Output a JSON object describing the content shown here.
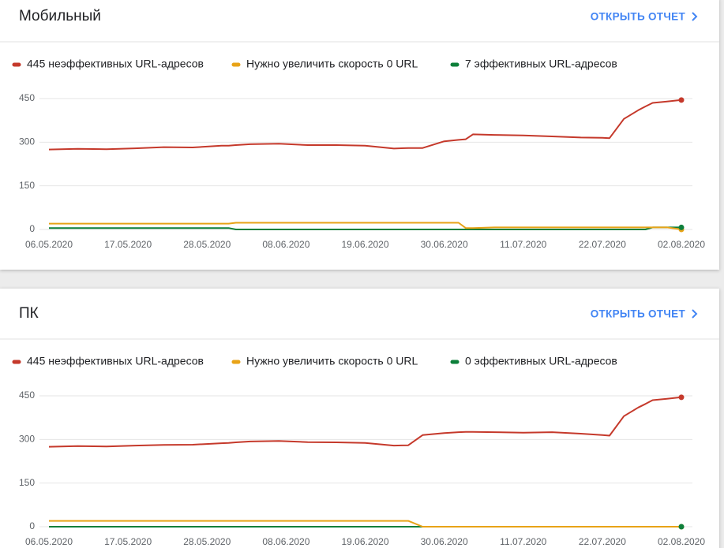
{
  "chart_data": [
    {
      "type": "line",
      "title": "Мобильный",
      "link": "ОТКРЫТЬ ОТЧЕТ",
      "x": [
        "06.05.2020",
        "10.05.2020",
        "14.05.2020",
        "18.05.2020",
        "22.05.2020",
        "26.05.2020",
        "30.05.2020",
        "31.05.2020",
        "01.06.2020",
        "03.06.2020",
        "07.06.2020",
        "11.06.2020",
        "15.06.2020",
        "19.06.2020",
        "23.06.2020",
        "25.06.2020",
        "27.06.2020",
        "30.06.2020",
        "02.07.2020",
        "03.07.2020",
        "04.07.2020",
        "07.07.2020",
        "11.07.2020",
        "15.07.2020",
        "19.07.2020",
        "22.07.2020",
        "23.07.2020",
        "25.07.2020",
        "27.07.2020",
        "28.07.2020",
        "29.07.2020",
        "31.07.2020",
        "02.08.2020"
      ],
      "xlim": [
        "06.05.2020",
        "02.08.2020"
      ],
      "xticks": [
        "06.05.2020",
        "17.05.2020",
        "28.05.2020",
        "08.06.2020",
        "19.06.2020",
        "30.06.2020",
        "11.07.2020",
        "22.07.2020",
        "02.08.2020"
      ],
      "ylim": [
        0,
        450
      ],
      "yticks": [
        0,
        150,
        300,
        450
      ],
      "grid": true,
      "series": [
        {
          "name": "445 неэффективных URL-адресов",
          "color": "#c5392b",
          "values": [
            275,
            277,
            276,
            279,
            283,
            282,
            288,
            288,
            290,
            293,
            295,
            290,
            290,
            288,
            278,
            280,
            280,
            303,
            308,
            310,
            327,
            325,
            323,
            320,
            316,
            315,
            314,
            380,
            410,
            423,
            435,
            440,
            445
          ]
        },
        {
          "name": "Нужно увеличить скорость 0 URL",
          "color": "#e8a317",
          "values": [
            20,
            20,
            20,
            20,
            20,
            20,
            20,
            20,
            23,
            23,
            23,
            23,
            23,
            23,
            23,
            23,
            23,
            23,
            23,
            5,
            5,
            7,
            7,
            7,
            7,
            7,
            7,
            7,
            7,
            7,
            7,
            7,
            0
          ]
        },
        {
          "name": "7 эффективных URL-адресов",
          "color": "#0d7f3a",
          "values": [
            5,
            5,
            5,
            5,
            5,
            5,
            5,
            5,
            0,
            0,
            0,
            0,
            0,
            0,
            0,
            0,
            0,
            0,
            0,
            0,
            0,
            0,
            0,
            0,
            0,
            0,
            0,
            0,
            0,
            0,
            7,
            7,
            7
          ]
        }
      ]
    },
    {
      "type": "line",
      "title": "ПК",
      "link": "ОТКРЫТЬ ОТЧЕТ",
      "x": [
        "06.05.2020",
        "10.05.2020",
        "14.05.2020",
        "18.05.2020",
        "22.05.2020",
        "26.05.2020",
        "30.05.2020",
        "31.05.2020",
        "01.06.2020",
        "03.06.2020",
        "07.06.2020",
        "11.06.2020",
        "15.06.2020",
        "19.06.2020",
        "23.06.2020",
        "25.06.2020",
        "27.06.2020",
        "30.06.2020",
        "02.07.2020",
        "03.07.2020",
        "04.07.2020",
        "07.07.2020",
        "11.07.2020",
        "15.07.2020",
        "19.07.2020",
        "22.07.2020",
        "23.07.2020",
        "25.07.2020",
        "27.07.2020",
        "28.07.2020",
        "29.07.2020",
        "31.07.2020",
        "02.08.2020"
      ],
      "xlim": [
        "06.05.2020",
        "02.08.2020"
      ],
      "xticks": [
        "06.05.2020",
        "17.05.2020",
        "28.05.2020",
        "08.06.2020",
        "19.06.2020",
        "30.06.2020",
        "11.07.2020",
        "22.07.2020",
        "02.08.2020"
      ],
      "ylim": [
        0,
        450
      ],
      "yticks": [
        0,
        150,
        300,
        450
      ],
      "grid": true,
      "series": [
        {
          "name": "445 неэффективных URL-адресов",
          "color": "#c5392b",
          "values": [
            275,
            277,
            276,
            279,
            281,
            282,
            287,
            288,
            290,
            293,
            295,
            291,
            290,
            288,
            279,
            280,
            315,
            322,
            325,
            326,
            326,
            325,
            323,
            325,
            320,
            315,
            313,
            380,
            410,
            422,
            435,
            440,
            445
          ]
        },
        {
          "name": "Нужно увеличить скорость 0 URL",
          "color": "#e8a317",
          "values": [
            20,
            20,
            20,
            20,
            20,
            20,
            20,
            20,
            20,
            20,
            20,
            20,
            20,
            20,
            20,
            20,
            0,
            0,
            0,
            0,
            0,
            0,
            0,
            0,
            0,
            0,
            0,
            0,
            0,
            0,
            0,
            0,
            0
          ]
        },
        {
          "name": "0 эффективных URL-адресов",
          "color": "#0d7f3a",
          "values": [
            0,
            0,
            0,
            0,
            0,
            0,
            0,
            0,
            0,
            0,
            0,
            0,
            0,
            0,
            0,
            0,
            0,
            0,
            0,
            0,
            0,
            0,
            0,
            0,
            0,
            0,
            0,
            0,
            0,
            0,
            0,
            0,
            0
          ]
        }
      ]
    }
  ]
}
